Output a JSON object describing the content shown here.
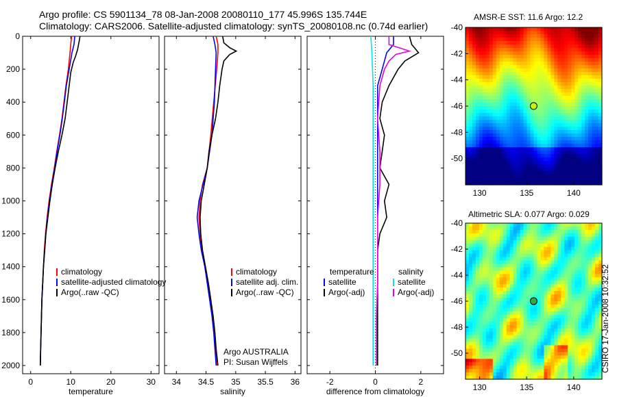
{
  "header": {
    "title_line1": "Argo profile: CS 5901134_78 08-Jan-2008 20080110_177 45.996S 135.744E",
    "title_line2": "Climatology: CARS2006. Satellite-adjusted climatology: synTS_20080108.nc (0.74d earlier)"
  },
  "colors": {
    "climatology": "#ff0000",
    "satellite": "#0000ff",
    "argo": "#000000",
    "temperature_diff": "#00e5e5",
    "salinity_diff": "#e600e6"
  },
  "chart_data": [
    {
      "type": "line",
      "panel": "temperature",
      "xlabel": "temperature",
      "ylabel": "",
      "xlim": [
        -2,
        32
      ],
      "ylim": [
        2050,
        0
      ],
      "xticks": [
        0,
        10,
        20,
        30
      ],
      "yticks": [
        0,
        200,
        400,
        600,
        800,
        1000,
        1200,
        1400,
        1600,
        1800,
        2000
      ],
      "legend": {
        "position": "middle-right",
        "entries": [
          "climatology",
          "satellite-adjusted climatology",
          "Argo(..raw -QC)"
        ]
      },
      "series": [
        {
          "name": "climatology",
          "color": "#ff0000",
          "points": [
            [
              10.2,
              0
            ],
            [
              10.0,
              50
            ],
            [
              9.8,
              100
            ],
            [
              9.4,
              200
            ],
            [
              8.8,
              300
            ],
            [
              8.3,
              400
            ],
            [
              7.8,
              500
            ],
            [
              7.2,
              600
            ],
            [
              6.5,
              700
            ],
            [
              5.9,
              800
            ],
            [
              5.2,
              900
            ],
            [
              4.6,
              1000
            ],
            [
              4.1,
              1100
            ],
            [
              3.7,
              1200
            ],
            [
              3.4,
              1300
            ],
            [
              3.2,
              1400
            ],
            [
              3.0,
              1500
            ],
            [
              2.8,
              1600
            ],
            [
              2.7,
              1700
            ],
            [
              2.6,
              1800
            ],
            [
              2.5,
              1900
            ],
            [
              2.4,
              2000
            ]
          ]
        },
        {
          "name": "satellite-adjusted climatology",
          "color": "#0000ff",
          "points": [
            [
              11.0,
              0
            ],
            [
              10.8,
              50
            ],
            [
              10.3,
              100
            ],
            [
              9.6,
              200
            ],
            [
              8.9,
              300
            ],
            [
              8.4,
              400
            ],
            [
              7.9,
              500
            ],
            [
              7.3,
              600
            ],
            [
              6.6,
              700
            ],
            [
              6.0,
              800
            ],
            [
              5.3,
              900
            ],
            [
              4.7,
              1000
            ],
            [
              4.2,
              1100
            ],
            [
              3.8,
              1200
            ],
            [
              3.5,
              1300
            ],
            [
              3.2,
              1400
            ],
            [
              3.0,
              1500
            ],
            [
              2.8,
              1600
            ],
            [
              2.7,
              1700
            ],
            [
              2.6,
              1800
            ],
            [
              2.5,
              1900
            ],
            [
              2.4,
              2000
            ]
          ]
        },
        {
          "name": "Argo(..raw -QC)",
          "color": "#000000",
          "points": [
            [
              12.3,
              0
            ],
            [
              12.1,
              30
            ],
            [
              11.7,
              80
            ],
            [
              11.2,
              120
            ],
            [
              10.6,
              160
            ],
            [
              10.0,
              220
            ],
            [
              9.6,
              300
            ],
            [
              9.1,
              400
            ],
            [
              8.6,
              500
            ],
            [
              7.8,
              600
            ],
            [
              6.9,
              700
            ],
            [
              6.1,
              800
            ],
            [
              5.4,
              900
            ],
            [
              4.8,
              1000
            ],
            [
              4.3,
              1100
            ],
            [
              3.8,
              1200
            ],
            [
              3.5,
              1300
            ],
            [
              3.2,
              1400
            ],
            [
              3.0,
              1500
            ],
            [
              2.8,
              1600
            ],
            [
              2.7,
              1700
            ],
            [
              2.6,
              1800
            ],
            [
              2.5,
              1900
            ],
            [
              2.4,
              2000
            ]
          ]
        }
      ]
    },
    {
      "type": "line",
      "panel": "salinity",
      "xlabel": "salinity",
      "ylabel": "",
      "xlim": [
        33.8,
        36.1
      ],
      "ylim": [
        2050,
        0
      ],
      "xticks": [
        34,
        34.5,
        35,
        35.5,
        36
      ],
      "xtick_labels": [
        "34",
        "34.5",
        "35",
        "35.5",
        "36"
      ],
      "legend": {
        "position": "middle-right",
        "entries": [
          "climatology",
          "satellite adj. clim.",
          "Argo(..raw -QC)"
        ]
      },
      "series": [
        {
          "name": "climatology",
          "color": "#ff0000",
          "points": [
            [
              34.67,
              0
            ],
            [
              34.7,
              50
            ],
            [
              34.7,
              100
            ],
            [
              34.68,
              200
            ],
            [
              34.63,
              400
            ],
            [
              34.58,
              600
            ],
            [
              34.52,
              800
            ],
            [
              34.44,
              900
            ],
            [
              34.4,
              1000
            ],
            [
              34.38,
              1100
            ],
            [
              34.4,
              1200
            ],
            [
              34.43,
              1300
            ],
            [
              34.48,
              1400
            ],
            [
              34.53,
              1500
            ],
            [
              34.57,
              1600
            ],
            [
              34.61,
              1700
            ],
            [
              34.64,
              1800
            ],
            [
              34.66,
              1900
            ],
            [
              34.68,
              2000
            ]
          ]
        },
        {
          "name": "satellite adj. clim.",
          "color": "#0000ff",
          "points": [
            [
              34.62,
              0
            ],
            [
              34.65,
              50
            ],
            [
              34.67,
              100
            ],
            [
              34.66,
              200
            ],
            [
              34.64,
              400
            ],
            [
              34.6,
              600
            ],
            [
              34.52,
              800
            ],
            [
              34.45,
              900
            ],
            [
              34.38,
              1000
            ],
            [
              34.35,
              1100
            ],
            [
              34.38,
              1200
            ],
            [
              34.42,
              1300
            ],
            [
              34.48,
              1400
            ],
            [
              34.52,
              1500
            ],
            [
              34.56,
              1600
            ],
            [
              34.6,
              1700
            ],
            [
              34.63,
              1800
            ],
            [
              34.65,
              1900
            ],
            [
              34.67,
              2000
            ]
          ]
        },
        {
          "name": "Argo(..raw -QC)",
          "color": "#000000",
          "points": [
            [
              34.78,
              0
            ],
            [
              34.8,
              40
            ],
            [
              34.9,
              70
            ],
            [
              35.01,
              90
            ],
            [
              34.9,
              110
            ],
            [
              34.85,
              130
            ],
            [
              34.8,
              150
            ],
            [
              34.77,
              200
            ],
            [
              34.73,
              300
            ],
            [
              34.7,
              400
            ],
            [
              34.66,
              500
            ],
            [
              34.6,
              600
            ],
            [
              34.55,
              700
            ],
            [
              34.52,
              800
            ],
            [
              34.47,
              900
            ],
            [
              34.42,
              1000
            ],
            [
              34.4,
              1100
            ],
            [
              34.41,
              1200
            ],
            [
              34.44,
              1300
            ],
            [
              34.49,
              1400
            ],
            [
              34.54,
              1500
            ],
            [
              34.58,
              1600
            ],
            [
              34.62,
              1700
            ],
            [
              34.65,
              1800
            ],
            [
              34.67,
              1900
            ],
            [
              34.7,
              2000
            ]
          ]
        }
      ]
    },
    {
      "type": "line",
      "panel": "difference",
      "xlabel": "difference from climatology",
      "ylabel": "",
      "xlim": [
        -3,
        3
      ],
      "ylim": [
        2050,
        0
      ],
      "xticks": [
        -2,
        0,
        2
      ],
      "legend": {
        "position": "middle",
        "groups": [
          {
            "header": "temperature",
            "entries": [
              "satellite",
              "Argo(-adj)"
            ]
          },
          {
            "header": "salinity",
            "entries": [
              "satellite",
              "Argo(-adj)"
            ]
          }
        ]
      },
      "series": [
        {
          "name": "satellite",
          "group": "temperature",
          "color": "#0000ff",
          "points": [
            [
              0.8,
              0
            ],
            [
              0.8,
              50
            ],
            [
              0.5,
              100
            ],
            [
              0.3,
              200
            ],
            [
              0.1,
              300
            ],
            [
              0.1,
              500
            ],
            [
              0.1,
              700
            ],
            [
              0.1,
              900
            ],
            [
              0.1,
              1100
            ],
            [
              0.1,
              1300
            ],
            [
              0.1,
              1500
            ],
            [
              0.05,
              1700
            ],
            [
              0.05,
              1900
            ],
            [
              0.05,
              2000
            ]
          ]
        },
        {
          "name": "Argo(-adj)",
          "group": "temperature",
          "color": "#000000",
          "points": [
            [
              1.5,
              0
            ],
            [
              1.6,
              50
            ],
            [
              1.9,
              100
            ],
            [
              1.3,
              150
            ],
            [
              1.0,
              200
            ],
            [
              0.6,
              300
            ],
            [
              0.3,
              400
            ],
            [
              0.2,
              500
            ],
            [
              0.4,
              600
            ],
            [
              0.3,
              700
            ],
            [
              0.2,
              800
            ],
            [
              0.6,
              900
            ],
            [
              0.4,
              1000
            ],
            [
              0.5,
              1100
            ],
            [
              0.2,
              1200
            ],
            [
              0.1,
              1300
            ],
            [
              0.1,
              1500
            ],
            [
              0.1,
              1700
            ],
            [
              0.1,
              1900
            ],
            [
              0.1,
              2000
            ]
          ]
        },
        {
          "name": "satellite",
          "group": "salinity",
          "color": "#00e5e5",
          "points": [
            [
              -0.2,
              0
            ],
            [
              -0.15,
              100
            ],
            [
              -0.1,
              300
            ],
            [
              -0.1,
              500
            ],
            [
              -0.1,
              700
            ],
            [
              -0.1,
              900
            ],
            [
              -0.1,
              1100
            ],
            [
              -0.1,
              1300
            ],
            [
              -0.1,
              1500
            ],
            [
              -0.1,
              1700
            ],
            [
              -0.1,
              1900
            ],
            [
              -0.1,
              2000
            ]
          ]
        },
        {
          "name": "Argo(-adj)",
          "group": "salinity",
          "color": "#e600e6",
          "points": [
            [
              0.6,
              0
            ],
            [
              0.6,
              50
            ],
            [
              1.5,
              90
            ],
            [
              0.9,
              110
            ],
            [
              0.6,
              150
            ],
            [
              0.4,
              200
            ],
            [
              0.2,
              300
            ],
            [
              0.1,
              500
            ],
            [
              0.2,
              700
            ],
            [
              0.2,
              900
            ],
            [
              0.1,
              1100
            ],
            [
              0.1,
              1300
            ],
            [
              0.1,
              1500
            ],
            [
              0.05,
              1700
            ],
            [
              0.05,
              1900
            ],
            [
              0.05,
              2000
            ]
          ]
        }
      ]
    },
    {
      "type": "heatmap",
      "panel": "sst-map",
      "title": "AMSR-E SST: 11.6 Argo: 12.2",
      "xlim": [
        128.5,
        143
      ],
      "ylim": [
        -52,
        -40
      ],
      "xticks": [
        130,
        135,
        140
      ],
      "yticks": [
        -40,
        -42,
        -44,
        -46,
        -48,
        -50
      ],
      "colormap": "jet",
      "argo_location": [
        135.744,
        -45.996
      ]
    },
    {
      "type": "heatmap",
      "panel": "sla-map",
      "title": "Altimetric SLA: 0.077 Argo: 0.029",
      "xlim": [
        128.5,
        143
      ],
      "ylim": [
        -52,
        -40
      ],
      "xticks": [
        130,
        135,
        140
      ],
      "yticks": [
        -40,
        -42,
        -44,
        -46,
        -48,
        -50
      ],
      "colormap": "jet",
      "argo_location": [
        135.744,
        -45.996
      ]
    }
  ],
  "credit": {
    "line1": "Argo AUSTRALIA",
    "line2": "PI: Susan Wijffels"
  },
  "stamp": "CSIRO 17-Jan-2008 10:32:52"
}
